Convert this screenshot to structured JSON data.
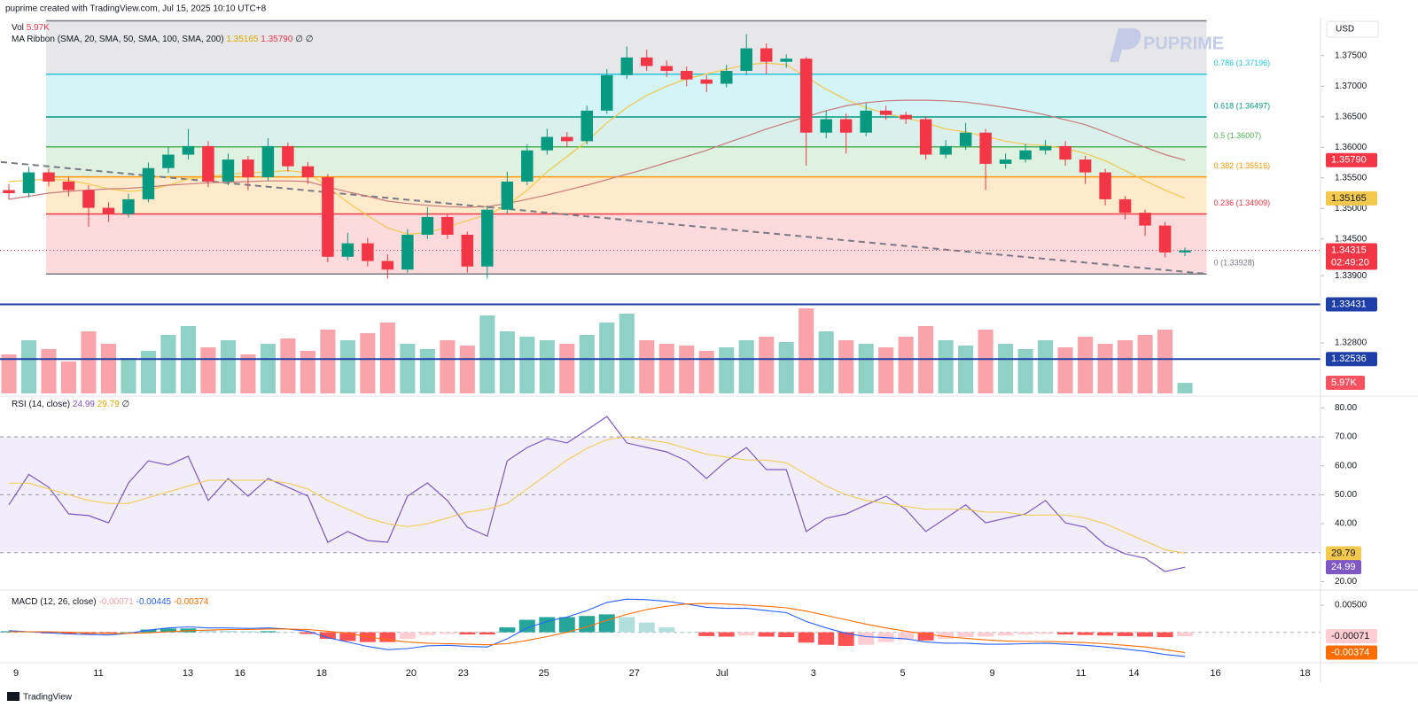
{
  "header": {
    "text": "puprime created with TradingView.com, Jul 15, 2025 10:10 UTC+8",
    "currency": "USD",
    "watermark": "PUPRIME",
    "footer": "TradingView"
  },
  "chart_data": {
    "type": "candlestick",
    "xlim": [
      -0.4,
      65.8
    ],
    "xticks": [
      {
        "value": 0.36,
        "label": "9"
      },
      {
        "value": 4.49,
        "label": "11"
      },
      {
        "value": 8.98,
        "label": "13"
      },
      {
        "value": 11.6,
        "label": "16"
      },
      {
        "value": 15.69,
        "label": "18"
      },
      {
        "value": 20.18,
        "label": "20"
      },
      {
        "value": 22.8,
        "label": "23"
      },
      {
        "value": 26.84,
        "label": "25"
      },
      {
        "value": 31.38,
        "label": "27"
      },
      {
        "value": 35.78,
        "label": "Jul"
      },
      {
        "value": 40.36,
        "label": "3"
      },
      {
        "value": 44.84,
        "label": "5"
      },
      {
        "value": 49.33,
        "label": "9"
      },
      {
        "value": 53.78,
        "label": "11"
      },
      {
        "value": 56.44,
        "label": "14"
      },
      {
        "value": 60.53,
        "label": "16"
      },
      {
        "value": 65.02,
        "label": "18"
      }
    ],
    "price": {
      "ylim": [
        1.3196,
        1.3812
      ],
      "yticks": [
        {
          "value": 1.375,
          "label": "1.37500"
        },
        {
          "value": 1.37,
          "label": "1.37000"
        },
        {
          "value": 1.365,
          "label": "1.36500"
        },
        {
          "value": 1.36,
          "label": "1.36000"
        },
        {
          "value": 1.355,
          "label": "1.35500"
        },
        {
          "value": 1.35,
          "label": "1.35000"
        },
        {
          "value": 1.345,
          "label": "1.34500"
        },
        {
          "value": 1.339,
          "label": "1.33900"
        },
        {
          "value": 1.328,
          "label": "1.32800"
        }
      ],
      "up_color": "#089981",
      "down_color": "#f23645",
      "open": [
        1.353,
        1.3525,
        1.3559,
        1.3544,
        1.353,
        1.3501,
        1.3491,
        1.3515,
        1.3566,
        1.3588,
        1.3602,
        1.3544,
        1.358,
        1.3551,
        1.3602,
        1.3569,
        1.3551,
        1.3421,
        1.3443,
        1.3414,
        1.34,
        1.3457,
        1.3486,
        1.3457,
        1.3405,
        1.3498,
        1.3544,
        1.3595,
        1.3617,
        1.361,
        1.366,
        1.3718,
        1.3747,
        1.3733,
        1.3725,
        1.3711,
        1.3704,
        1.3725,
        1.3762,
        1.374,
        1.3745,
        1.3624,
        1.3646,
        1.3624,
        1.366,
        1.3653,
        1.3646,
        1.3588,
        1.3602,
        1.3624,
        1.3573,
        1.358,
        1.3595,
        1.3602,
        1.358,
        1.3559,
        1.3515,
        1.3493,
        1.3472,
        1.3428
      ],
      "high": [
        1.354,
        1.3568,
        1.3565,
        1.3552,
        1.3538,
        1.351,
        1.3524,
        1.3575,
        1.36,
        1.363,
        1.361,
        1.359,
        1.3586,
        1.3615,
        1.3608,
        1.3576,
        1.3556,
        1.346,
        1.3452,
        1.3425,
        1.3466,
        1.3502,
        1.3492,
        1.3462,
        1.3505,
        1.356,
        1.3605,
        1.363,
        1.3625,
        1.3668,
        1.3728,
        1.3765,
        1.376,
        1.3742,
        1.3732,
        1.3718,
        1.3735,
        1.3785,
        1.377,
        1.3752,
        1.3748,
        1.366,
        1.3655,
        1.3672,
        1.3668,
        1.3658,
        1.365,
        1.3612,
        1.364,
        1.363,
        1.359,
        1.3606,
        1.3612,
        1.361,
        1.3586,
        1.3565,
        1.352,
        1.3498,
        1.3478,
        1.3436
      ],
      "low": [
        1.3515,
        1.3518,
        1.3536,
        1.352,
        1.347,
        1.3478,
        1.3485,
        1.351,
        1.3558,
        1.358,
        1.3535,
        1.3538,
        1.353,
        1.3545,
        1.356,
        1.354,
        1.3412,
        1.3415,
        1.3405,
        1.3385,
        1.3395,
        1.345,
        1.345,
        1.3395,
        1.3385,
        1.3492,
        1.3538,
        1.3588,
        1.36,
        1.3605,
        1.3655,
        1.3712,
        1.3725,
        1.3715,
        1.37,
        1.369,
        1.3698,
        1.3718,
        1.372,
        1.373,
        1.357,
        1.3615,
        1.359,
        1.3618,
        1.3645,
        1.3638,
        1.358,
        1.3582,
        1.3596,
        1.353,
        1.3565,
        1.3575,
        1.3588,
        1.357,
        1.354,
        1.3505,
        1.3482,
        1.3455,
        1.342,
        1.3422
      ],
      "close": [
        1.3525,
        1.3559,
        1.3544,
        1.353,
        1.3501,
        1.3491,
        1.3515,
        1.3566,
        1.3588,
        1.3602,
        1.3544,
        1.358,
        1.3551,
        1.3602,
        1.3569,
        1.3551,
        1.3421,
        1.3443,
        1.3414,
        1.34,
        1.3457,
        1.3486,
        1.3457,
        1.3405,
        1.3498,
        1.3544,
        1.3595,
        1.3617,
        1.361,
        1.366,
        1.3718,
        1.3747,
        1.3733,
        1.3725,
        1.3711,
        1.3704,
        1.3725,
        1.3762,
        1.374,
        1.3745,
        1.3624,
        1.3646,
        1.3624,
        1.366,
        1.3653,
        1.3646,
        1.3588,
        1.3602,
        1.3624,
        1.3573,
        1.358,
        1.3595,
        1.3602,
        1.358,
        1.3559,
        1.3515,
        1.3493,
        1.3472,
        1.3428,
        1.34315
      ],
      "series": [
        {
          "color": "#f2c94c",
          "values": [
            1.3544,
            1.3546,
            1.3548,
            1.3546,
            1.354,
            1.3532,
            1.3528,
            1.353,
            1.3538,
            1.3548,
            1.3552,
            1.3556,
            1.3558,
            1.356,
            1.3562,
            1.3558,
            1.3535,
            1.351,
            1.3488,
            1.3468,
            1.3458,
            1.346,
            1.347,
            1.348,
            1.349,
            1.3505,
            1.353,
            1.356,
            1.3585,
            1.361,
            1.364,
            1.3665,
            1.3685,
            1.37,
            1.3712,
            1.372,
            1.3728,
            1.3735,
            1.3738,
            1.3735,
            1.3715,
            1.3695,
            1.3678,
            1.3665,
            1.3655,
            1.3648,
            1.364,
            1.363,
            1.3625,
            1.3618,
            1.361,
            1.3605,
            1.3603,
            1.3598,
            1.359,
            1.3578,
            1.3562,
            1.3545,
            1.353,
            1.35165
          ]
        },
        {
          "color": "#c97b7b",
          "values": [
            1.3515,
            1.352,
            1.3525,
            1.3528,
            1.353,
            1.3532,
            1.3533,
            1.3535,
            1.3538,
            1.354,
            1.3542,
            1.3543,
            1.3544,
            1.3545,
            1.3545,
            1.3544,
            1.3535,
            1.3527,
            1.352,
            1.3512,
            1.3508,
            1.3505,
            1.3503,
            1.3502,
            1.3503,
            1.3508,
            1.3515,
            1.3522,
            1.353,
            1.3538,
            1.3547,
            1.3556,
            1.3565,
            1.3575,
            1.3585,
            1.3595,
            1.3607,
            1.3618,
            1.363,
            1.364,
            1.365,
            1.366,
            1.3668,
            1.3673,
            1.3676,
            1.3677,
            1.3677,
            1.3676,
            1.3674,
            1.367,
            1.3665,
            1.366,
            1.3653,
            1.3645,
            1.3637,
            1.3625,
            1.3612,
            1.36,
            1.3588,
            1.3579
          ]
        }
      ],
      "fib": {
        "x": [
          1.87,
          60.09
        ],
        "levels": [
          {
            "price": 1.3807,
            "color": "#787b86",
            "fill": "rgba(120,123,134,0.18)"
          },
          {
            "label": "0.786 (1.37196)",
            "price": 1.37196,
            "color": "#26c6da",
            "fill": "rgba(38,198,218,0.2)"
          },
          {
            "label": "0.618 (1.36497)",
            "price": 1.36497,
            "color": "#089981",
            "fill": "rgba(8,153,129,0.15)"
          },
          {
            "label": "0.5 (1.36007)",
            "price": 1.36007,
            "color": "#4caf50",
            "fill": "rgba(76,175,80,0.18)"
          },
          {
            "label": "0.382 (1.35516)",
            "price": 1.35516,
            "color": "#ff9800",
            "fill": "rgba(255,152,0,0.2)"
          },
          {
            "label": "0.236 (1.34909)",
            "price": 1.34909,
            "color": "#f23645",
            "fill": "rgba(242,54,69,0.18)"
          },
          {
            "label": "0 (1.33928)",
            "price": 1.33928,
            "color": "#787b86"
          }
        ]
      },
      "trendline": {
        "x": [
          -0.4,
          60.09
        ],
        "values": [
          1.3576,
          1.3393
        ],
        "color": "#787b86"
      },
      "hlines": [
        {
          "value": 1.33431,
          "color": "#1e3fa8"
        },
        {
          "value": 1.32536,
          "color": "#1e3fa8"
        }
      ],
      "last_price": {
        "value": 1.34315,
        "color": "#f23645"
      },
      "badges": [
        {
          "value": 1.3579,
          "label": "1.35790",
          "color": "#f23645",
          "text_color": "#ffffff"
        },
        {
          "value": 1.35165,
          "label": "1.35165",
          "color": "#f2c94c",
          "text_color": "#131722"
        },
        {
          "value": 1.34315,
          "label": "1.34315",
          "sub": "02:49:20",
          "color": "#f23645",
          "text_color": "#ffffff"
        },
        {
          "value": 1.33431,
          "label": "1.33431",
          "color": "#1e3fa8",
          "text_color": "#ffffff"
        },
        {
          "value": 1.32536,
          "label": "1.32536",
          "color": "#1e3fa8",
          "text_color": "#ffffff"
        }
      ],
      "legend_vol": {
        "name": "Vol",
        "value": "5.97K"
      },
      "legend": {
        "title": "MA Ribbon (SMA, 20, SMA, 50, SMA, 100, SMA, 200)",
        "values": [
          "1.35165",
          "1.35790",
          "∅",
          "∅"
        ]
      }
    },
    "volume": {
      "ylim": [
        0,
        60
      ],
      "values": [
        22,
        30,
        25,
        18,
        35,
        28,
        20,
        24,
        33,
        38,
        26,
        30,
        22,
        28,
        31,
        24,
        36,
        30,
        34,
        40,
        28,
        25,
        30,
        27,
        44,
        35,
        32,
        30,
        28,
        33,
        40,
        45,
        30,
        28,
        27,
        24,
        26,
        30,
        32,
        29,
        48,
        35,
        30,
        28,
        26,
        32,
        38,
        30,
        27,
        36,
        28,
        25,
        30,
        26,
        32,
        28,
        30,
        33,
        36,
        5.97
      ],
      "badge": {
        "label": "5.97K",
        "color": "#f7525f"
      }
    },
    "rsi": {
      "ylim": [
        17.4,
        83.15
      ],
      "yticks": [
        {
          "value": 80,
          "label": "80.00"
        },
        {
          "value": 70,
          "label": "70.00"
        },
        {
          "value": 60,
          "label": "60.00"
        },
        {
          "value": 50,
          "label": "50.00"
        },
        {
          "value": 40,
          "label": "40.00"
        },
        {
          "value": 20,
          "label": "20.00"
        }
      ],
      "band": [
        30,
        70
      ],
      "levels": [
        70,
        50,
        30
      ],
      "series": [
        {
          "color": "#7e57c2",
          "values": [
            46.5,
            57,
            52.6,
            43.4,
            42.8,
            40.3,
            54.1,
            61.7,
            60.2,
            63.3,
            48,
            55.6,
            49.5,
            55.6,
            52.6,
            49.5,
            33.6,
            37.3,
            34.2,
            33.6,
            49.5,
            54.1,
            48,
            38.8,
            35.7,
            61.7,
            66.3,
            69.4,
            67.9,
            72.4,
            77,
            67.9,
            66.3,
            64.8,
            61.7,
            55.6,
            61.7,
            66.3,
            58.7,
            58.7,
            37.3,
            41.9,
            43.4,
            46.5,
            49.5,
            44.9,
            37.3,
            41.9,
            46.5,
            40.3,
            41.9,
            43.4,
            48,
            40.3,
            38.8,
            32.7,
            29.6,
            28.1,
            23.5,
            24.99
          ]
        },
        {
          "color": "#f2c94c",
          "values": [
            54,
            54,
            52,
            50,
            48,
            47,
            47,
            49,
            51,
            53,
            55,
            55,
            55,
            55,
            54,
            52,
            48,
            45,
            42,
            40,
            39,
            40,
            42,
            44,
            45,
            47,
            52,
            57,
            62,
            66,
            69,
            70,
            69,
            68,
            66,
            64,
            63,
            62,
            62,
            61,
            57,
            53,
            50,
            48,
            47,
            46,
            45,
            45,
            45,
            44,
            44,
            43,
            43,
            43,
            42,
            40,
            37,
            34,
            31,
            29.79
          ]
        }
      ],
      "badges": [
        {
          "value": 29.79,
          "label": "29.79",
          "color": "#f2c94c",
          "text_color": "#131722"
        },
        {
          "value": 24.99,
          "label": "24.99",
          "color": "#7e57c2",
          "text_color": "#ffffff"
        }
      ],
      "legend": {
        "title": "RSI (14, close)",
        "values": [
          "24.99",
          "29.79",
          "∅"
        ]
      }
    },
    "macd": {
      "ylim": [
        -0.00512,
        0.00744
      ],
      "yticks": [
        {
          "value": 0.005,
          "label": "0.00500"
        }
      ],
      "zero": 0,
      "histogram": [
        0.0002,
        0,
        -0.0002,
        -0.0003,
        -0.0003,
        -0.0003,
        0,
        0.0005,
        0.0007,
        0.0007,
        0.0004,
        0.0003,
        0.0002,
        0.0002,
        0,
        -0.0003,
        -0.0012,
        -0.0016,
        -0.0018,
        -0.0018,
        -0.0012,
        -0.0005,
        -0.0003,
        -0.0004,
        -0.0004,
        0.0009,
        0.0023,
        0.0028,
        0.0028,
        0.003,
        0.0033,
        0.0028,
        0.0018,
        0.0009,
        0,
        -0.0007,
        -0.0008,
        -0.0006,
        -0.0008,
        -0.0009,
        -0.0019,
        -0.0023,
        -0.0025,
        -0.0023,
        -0.0018,
        -0.0014,
        -0.0015,
        -0.0012,
        -0.0009,
        -0.0008,
        -0.0006,
        -0.0004,
        -0.0003,
        -0.0004,
        -0.0005,
        -0.0006,
        -0.0007,
        -0.0008,
        -0.0009,
        -0.00071
      ],
      "series": [
        {
          "color": "#2962ff",
          "values": [
            0.0003,
            0.0001,
            -0.0001,
            -0.0003,
            -0.0004,
            -0.0005,
            -0.0002,
            0.0004,
            0.0008,
            0.001,
            0.0008,
            0.0008,
            0.0007,
            0.0008,
            0.0006,
            0.0002,
            -0.001,
            -0.0018,
            -0.0026,
            -0.0032,
            -0.003,
            -0.0025,
            -0.0024,
            -0.0026,
            -0.0027,
            -0.0012,
            0.0008,
            0.002,
            0.0028,
            0.004,
            0.0055,
            0.0061,
            0.006,
            0.0057,
            0.0052,
            0.0046,
            0.0044,
            0.0044,
            0.004,
            0.0036,
            0.002,
            0.0008,
            -0.0002,
            -0.0008,
            -0.001,
            -0.0012,
            -0.0018,
            -0.002,
            -0.002,
            -0.0022,
            -0.0022,
            -0.0021,
            -0.002,
            -0.0022,
            -0.0024,
            -0.0027,
            -0.0031,
            -0.0035,
            -0.0041,
            -0.00445
          ]
        },
        {
          "color": "#ff6d00",
          "values": [
            0.0001,
            0.0001,
            0.0001,
            0,
            -0.0001,
            -0.0002,
            -0.0002,
            -0.0001,
            0.0001,
            0.0003,
            0.0004,
            0.0005,
            0.0005,
            0.0006,
            0.0006,
            0.0005,
            0.0002,
            -0.0002,
            -0.0008,
            -0.0014,
            -0.0018,
            -0.002,
            -0.0021,
            -0.0022,
            -0.0023,
            -0.0021,
            -0.0015,
            -0.0008,
            0,
            0.001,
            0.0022,
            0.0033,
            0.0042,
            0.0048,
            0.0052,
            0.0053,
            0.0052,
            0.005,
            0.0048,
            0.0045,
            0.0039,
            0.0031,
            0.0023,
            0.0015,
            0.0008,
            0.0002,
            -0.0003,
            -0.0008,
            -0.0011,
            -0.0014,
            -0.0016,
            -0.0017,
            -0.0017,
            -0.0018,
            -0.0019,
            -0.0021,
            -0.0024,
            -0.0027,
            -0.0032,
            -0.00374
          ]
        }
      ],
      "badges": [
        {
          "value": -0.00071,
          "label": "-0.00071",
          "color": "#ffcdd2",
          "text_color": "#131722"
        },
        {
          "value": -0.00374,
          "label": "-0.00374",
          "color": "#ff6d00",
          "text_color": "#ffffff"
        }
      ],
      "legend": {
        "title": "MACD (12, 26, close)",
        "values": [
          "-0.00071",
          "-0.00445",
          "-0.00374"
        ],
        "colors": [
          "#f7a1a8",
          "#2962ff",
          "#ff6d00"
        ]
      }
    }
  }
}
